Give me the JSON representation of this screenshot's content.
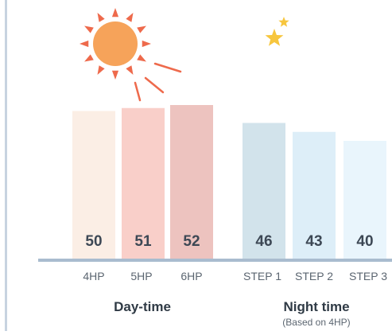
{
  "chart_data": {
    "type": "bar",
    "ylim": [
      0,
      60
    ],
    "categories": [
      "4HP",
      "5HP",
      "6HP",
      "STEP 1",
      "STEP 2",
      "STEP 3"
    ],
    "values": [
      50,
      51,
      52,
      46,
      43,
      40
    ],
    "groups": [
      {
        "label": "Day-time",
        "sublabel": "",
        "icon": "sun-icon",
        "categories": [
          "4HP",
          "5HP",
          "6HP"
        ]
      },
      {
        "label": "Night time",
        "sublabel": "(Based on 4HP)",
        "icon": "moon-icon",
        "categories": [
          "STEP 1",
          "STEP 2",
          "STEP 3"
        ]
      }
    ],
    "bar_colors": [
      "#fbeee5",
      "#f9cfc9",
      "#edc3bf",
      "#d2e3eb",
      "#ddeef8",
      "#e9f5fc"
    ],
    "colors": {
      "value_text": "#3d4855",
      "tick_text": "#5b6570",
      "group_text": "#2f3a45",
      "baseline": "#a9bccf",
      "sun": "#f6a35a",
      "sun_rays": "#ee6a4c",
      "moon": "#f7c63e"
    }
  }
}
